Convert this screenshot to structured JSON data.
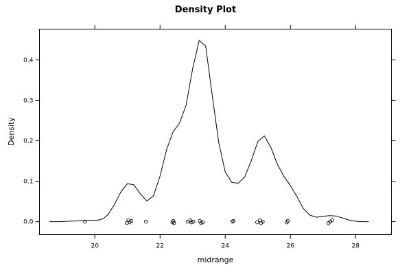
{
  "chart_data": {
    "type": "line",
    "title": "Density Plot",
    "xlabel": "midrange",
    "ylabel": "Density",
    "xlim": [
      18.3,
      29.1
    ],
    "ylim": [
      -0.032,
      0.476
    ],
    "x_ticks": [
      20,
      22,
      24,
      26,
      28
    ],
    "y_ticks": [
      0.0,
      0.1,
      0.2,
      0.3,
      0.4
    ],
    "x_tick_labels": [
      "20",
      "22",
      "24",
      "26",
      "28"
    ],
    "y_tick_labels": [
      "0.0",
      "0.1",
      "0.2",
      "0.3",
      "0.4"
    ],
    "grid": false,
    "series": [
      {
        "x": [
          18.6,
          18.9,
          19.2,
          19.5,
          19.8,
          20.1,
          20.25,
          20.4,
          20.6,
          20.8,
          21.0,
          21.2,
          21.4,
          21.6,
          21.8,
          22.0,
          22.2,
          22.4,
          22.6,
          22.8,
          23.0,
          23.2,
          23.4,
          23.6,
          23.8,
          24.0,
          24.2,
          24.4,
          24.6,
          24.8,
          25.0,
          25.2,
          25.4,
          25.6,
          25.8,
          26.0,
          26.2,
          26.4,
          26.6,
          26.8,
          27.0,
          27.2,
          27.4,
          27.6,
          27.8,
          28.0,
          28.2,
          28.4
        ],
        "y": [
          0.0,
          0.0,
          0.001,
          0.002,
          0.003,
          0.004,
          0.007,
          0.017,
          0.042,
          0.074,
          0.094,
          0.091,
          0.068,
          0.051,
          0.064,
          0.113,
          0.178,
          0.222,
          0.244,
          0.288,
          0.378,
          0.448,
          0.434,
          0.313,
          0.196,
          0.123,
          0.097,
          0.095,
          0.111,
          0.151,
          0.198,
          0.212,
          0.184,
          0.142,
          0.112,
          0.089,
          0.062,
          0.032,
          0.016,
          0.011,
          0.013,
          0.015,
          0.014,
          0.009,
          0.004,
          0.001,
          0.0,
          0.0
        ]
      }
    ],
    "rug": [
      19.7,
      20.98,
      21.03,
      21.07,
      21.12,
      21.57,
      22.38,
      22.41,
      22.43,
      22.85,
      22.93,
      22.96,
      23.02,
      23.22,
      23.26,
      23.31,
      24.22,
      24.25,
      24.98,
      25.07,
      25.1,
      25.15,
      25.89,
      25.92,
      27.17,
      27.22,
      27.28
    ]
  }
}
